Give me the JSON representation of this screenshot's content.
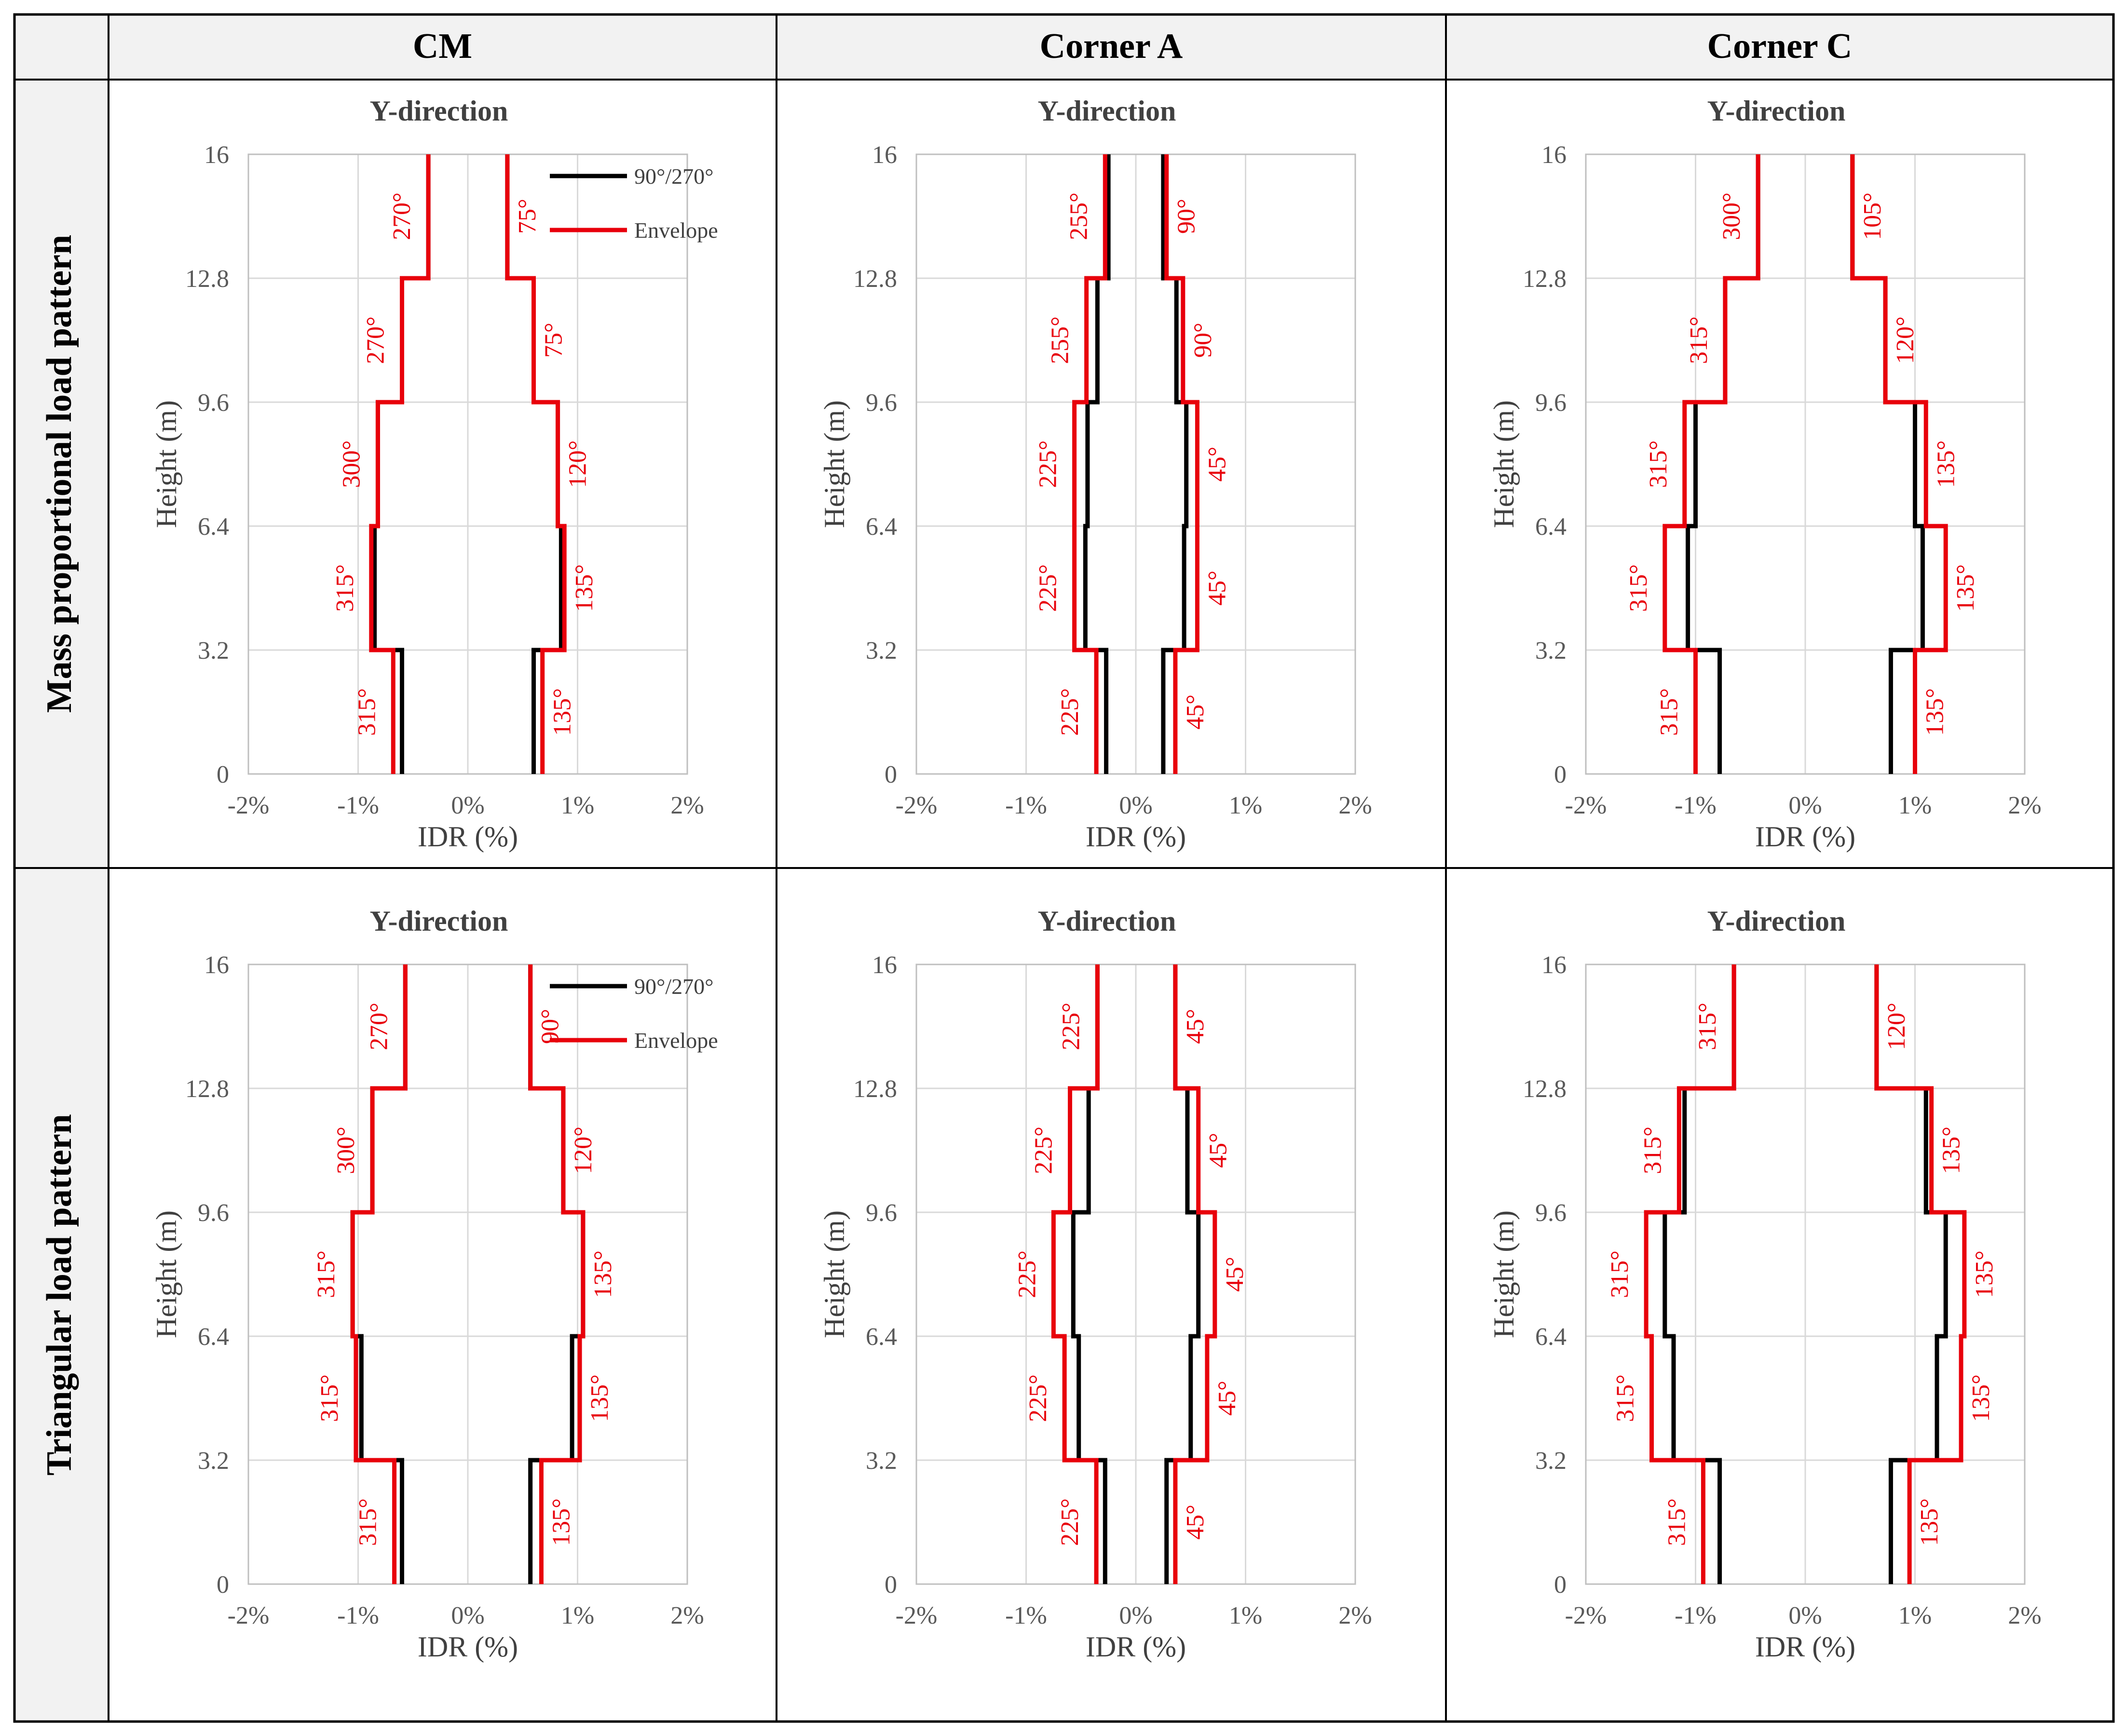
{
  "columns": [
    "CM",
    "Corner A",
    "Corner C"
  ],
  "rows": [
    "Mass proportional load pattern",
    "Triangular load pattern"
  ],
  "colors": {
    "black": "#000000",
    "red": "#e8000b",
    "grid": "#d9d9d9",
    "axis": "#bfbfbf",
    "header_bg": "#f2f2f2"
  },
  "chart_data": [
    {
      "type": "line",
      "row": 0,
      "col": 0,
      "title": "Y-direction",
      "xlabel": "IDR (%)",
      "ylabel": "Height (m)",
      "xlim": [
        -2,
        2
      ],
      "ylim": [
        0,
        16
      ],
      "xticks": [
        "-2%",
        "-1%",
        "0%",
        "1%",
        "2%"
      ],
      "yticks": [
        "0",
        "3.2",
        "6.4",
        "9.6",
        "12.8",
        "16"
      ],
      "legend": [
        "90°/270°",
        "Envelope"
      ],
      "storey_edges": [
        0,
        3.2,
        6.4,
        9.6,
        12.8,
        16
      ],
      "series": [
        {
          "name": "90°/270°",
          "left": [
            -0.6,
            -0.85,
            -0.82,
            -0.6,
            -0.36
          ],
          "right": [
            0.6,
            0.85,
            0.82,
            0.6,
            0.36
          ]
        },
        {
          "name": "Envelope",
          "left": [
            -0.68,
            -0.88,
            -0.82,
            -0.6,
            -0.36
          ],
          "right": [
            0.68,
            0.88,
            0.82,
            0.6,
            0.36
          ]
        }
      ],
      "annotations_left": [
        "315°",
        "315°",
        "300°",
        "270°",
        "270°"
      ],
      "annotations_right": [
        "135°",
        "135°",
        "120°",
        "75°",
        "75°"
      ]
    },
    {
      "type": "line",
      "row": 0,
      "col": 1,
      "title": "Y-direction",
      "xlabel": "IDR (%)",
      "ylabel": "Height (m)",
      "xlim": [
        -2,
        2
      ],
      "ylim": [
        0,
        16
      ],
      "xticks": [
        "-2%",
        "-1%",
        "0%",
        "1%",
        "2%"
      ],
      "yticks": [
        "0",
        "3.2",
        "6.4",
        "9.6",
        "12.8",
        "16"
      ],
      "legend": [],
      "storey_edges": [
        0,
        3.2,
        6.4,
        9.6,
        12.8,
        16
      ],
      "series": [
        {
          "name": "90°/270°",
          "left": [
            -0.27,
            -0.46,
            -0.44,
            -0.35,
            -0.25
          ],
          "right": [
            0.25,
            0.44,
            0.46,
            0.37,
            0.25
          ]
        },
        {
          "name": "Envelope",
          "left": [
            -0.36,
            -0.56,
            -0.56,
            -0.45,
            -0.28
          ],
          "right": [
            0.36,
            0.56,
            0.56,
            0.43,
            0.28
          ]
        }
      ],
      "annotations_left": [
        "225°",
        "225°",
        "225°",
        "255°",
        "255°"
      ],
      "annotations_right": [
        "45°",
        "45°",
        "45°",
        "90°",
        "90°"
      ]
    },
    {
      "type": "line",
      "row": 0,
      "col": 2,
      "title": "Y-direction",
      "xlabel": "IDR (%)",
      "ylabel": "Height (m)",
      "xlim": [
        -2,
        2
      ],
      "ylim": [
        0,
        16
      ],
      "xticks": [
        "-2%",
        "-1%",
        "0%",
        "1%",
        "2%"
      ],
      "yticks": [
        "0",
        "3.2",
        "6.4",
        "9.6",
        "12.8",
        "16"
      ],
      "legend": [],
      "storey_edges": [
        0,
        3.2,
        6.4,
        9.6,
        12.8,
        16
      ],
      "series": [
        {
          "name": "90°/270°",
          "left": [
            -0.78,
            -1.07,
            -1.0,
            -0.73,
            -0.43
          ],
          "right": [
            0.78,
            1.07,
            1.0,
            0.73,
            0.43
          ]
        },
        {
          "name": "Envelope",
          "left": [
            -1.0,
            -1.28,
            -1.1,
            -0.73,
            -0.43
          ],
          "right": [
            1.0,
            1.28,
            1.1,
            0.73,
            0.43
          ]
        }
      ],
      "annotations_left": [
        "315°",
        "315°",
        "315°",
        "315°",
        "300°"
      ],
      "annotations_right": [
        "135°",
        "135°",
        "135°",
        "120°",
        "105°"
      ]
    },
    {
      "type": "line",
      "row": 1,
      "col": 0,
      "title": "Y-direction",
      "xlabel": "IDR (%)",
      "ylabel": "Height (m)",
      "xlim": [
        -2,
        2
      ],
      "ylim": [
        0,
        16
      ],
      "xticks": [
        "-2%",
        "-1%",
        "0%",
        "1%",
        "2%"
      ],
      "yticks": [
        "0",
        "3.2",
        "6.4",
        "9.6",
        "12.8",
        "16"
      ],
      "legend": [
        "90°/270°",
        "Envelope"
      ],
      "storey_edges": [
        0,
        3.2,
        6.4,
        9.6,
        12.8,
        16
      ],
      "series": [
        {
          "name": "90°/270°",
          "left": [
            -0.6,
            -0.97,
            -1.05,
            -0.87,
            -0.57
          ],
          "right": [
            0.57,
            0.95,
            1.05,
            0.87,
            0.57
          ]
        },
        {
          "name": "Envelope",
          "left": [
            -0.67,
            -1.02,
            -1.05,
            -0.87,
            -0.57
          ],
          "right": [
            0.67,
            1.02,
            1.05,
            0.87,
            0.57
          ]
        }
      ],
      "annotations_left": [
        "315°",
        "315°",
        "315°",
        "300°",
        "270°"
      ],
      "annotations_right": [
        "135°",
        "135°",
        "135°",
        "120°",
        "90°"
      ]
    },
    {
      "type": "line",
      "row": 1,
      "col": 1,
      "title": "Y-direction",
      "xlabel": "IDR (%)",
      "ylabel": "Height (m)",
      "xlim": [
        -2,
        2
      ],
      "ylim": [
        0,
        16
      ],
      "xticks": [
        "-2%",
        "-1%",
        "0%",
        "1%",
        "2%"
      ],
      "yticks": [
        "0",
        "3.2",
        "6.4",
        "9.6",
        "12.8",
        "16"
      ],
      "legend": [],
      "storey_edges": [
        0,
        3.2,
        6.4,
        9.6,
        12.8,
        16
      ],
      "series": [
        {
          "name": "90°/270°",
          "left": [
            -0.28,
            -0.52,
            -0.57,
            -0.43,
            -0.35
          ],
          "right": [
            0.28,
            0.5,
            0.57,
            0.47,
            0.36
          ]
        },
        {
          "name": "Envelope",
          "left": [
            -0.36,
            -0.65,
            -0.75,
            -0.6,
            -0.35
          ],
          "right": [
            0.36,
            0.65,
            0.72,
            0.57,
            0.36
          ]
        }
      ],
      "annotations_left": [
        "225°",
        "225°",
        "225°",
        "225°",
        "225°"
      ],
      "annotations_right": [
        "45°",
        "45°",
        "45°",
        "45°",
        "45°"
      ]
    },
    {
      "type": "line",
      "row": 1,
      "col": 2,
      "title": "Y-direction",
      "xlabel": "IDR (%)",
      "ylabel": "Height (m)",
      "xlim": [
        -2,
        2
      ],
      "ylim": [
        0,
        16
      ],
      "xticks": [
        "-2%",
        "-1%",
        "0%",
        "1%",
        "2%"
      ],
      "yticks": [
        "0",
        "3.2",
        "6.4",
        "9.6",
        "12.8",
        "16"
      ],
      "legend": [],
      "storey_edges": [
        0,
        3.2,
        6.4,
        9.6,
        12.8,
        16
      ],
      "series": [
        {
          "name": "90°/270°",
          "left": [
            -0.78,
            -1.2,
            -1.28,
            -1.1,
            -0.65
          ],
          "right": [
            0.78,
            1.2,
            1.28,
            1.1,
            0.65
          ]
        },
        {
          "name": "Envelope",
          "left": [
            -0.93,
            -1.4,
            -1.45,
            -1.15,
            -0.65
          ],
          "right": [
            0.95,
            1.42,
            1.45,
            1.15,
            0.65
          ]
        }
      ],
      "annotations_left": [
        "315°",
        "315°",
        "315°",
        "315°",
        "315°"
      ],
      "annotations_right": [
        "135°",
        "135°",
        "135°",
        "135°",
        "120°"
      ]
    }
  ]
}
